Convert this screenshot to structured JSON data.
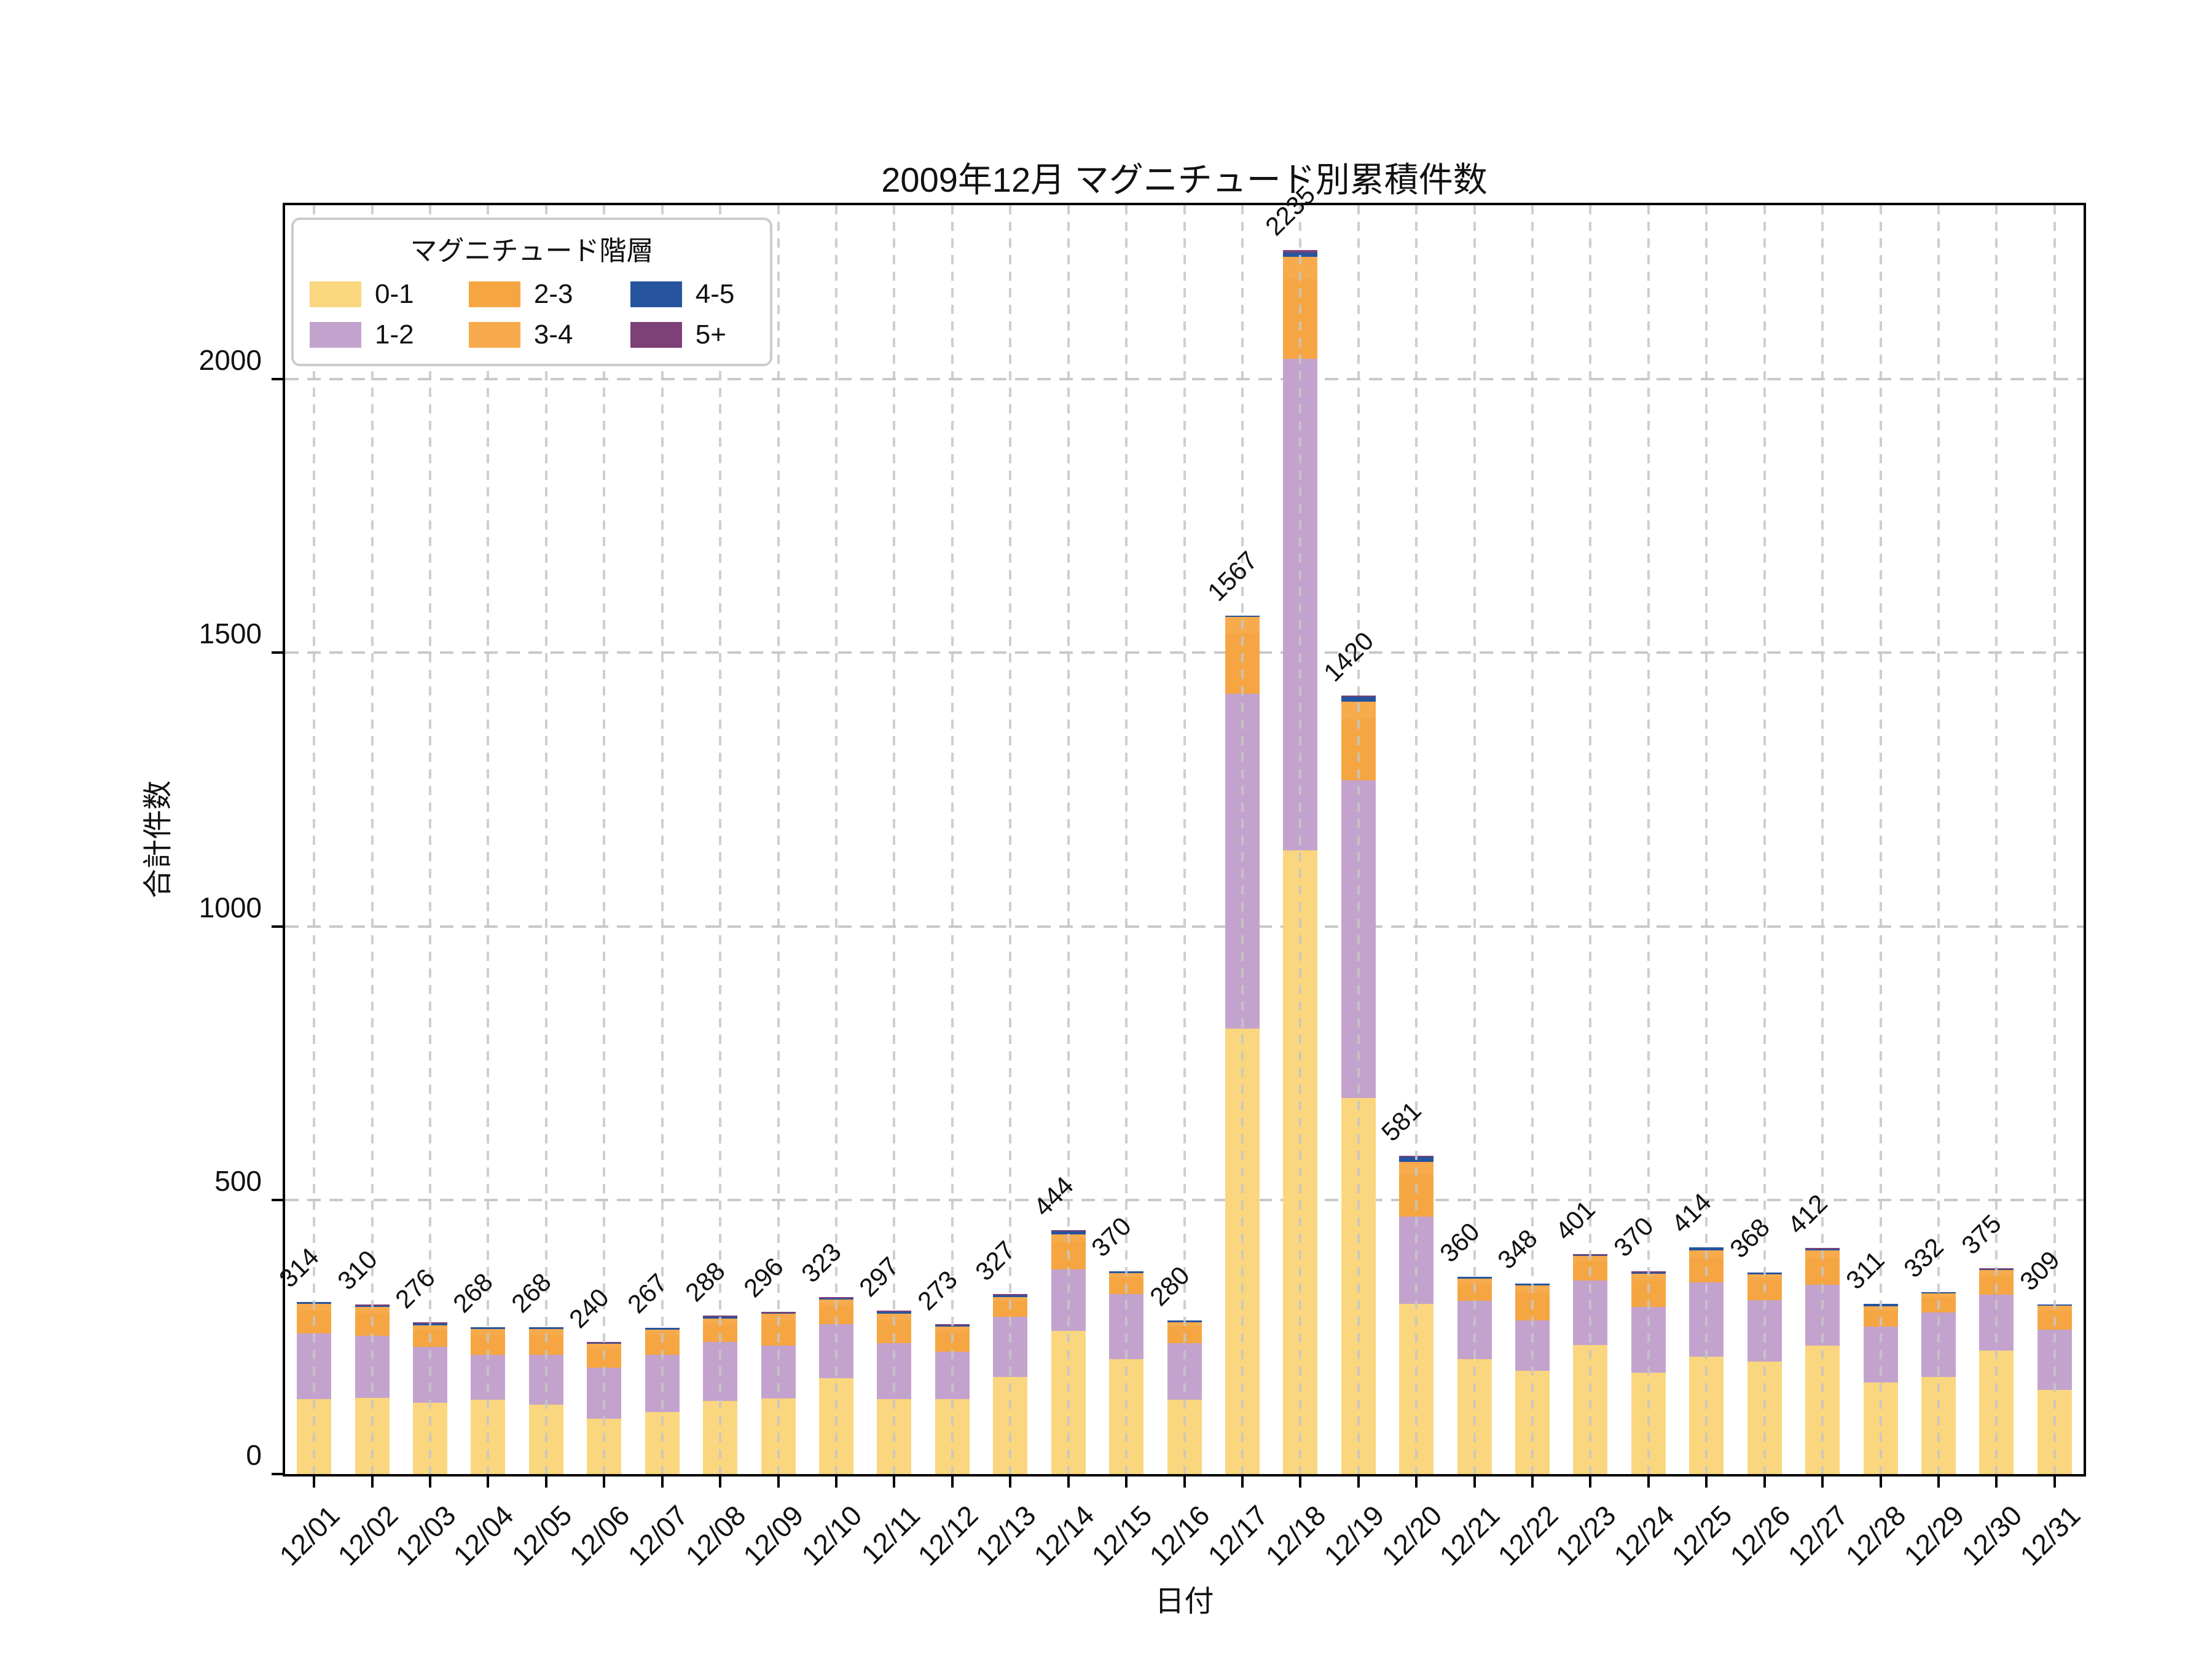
{
  "title": "2009年12月 マグニチュード別累積件数",
  "axes": {
    "x_label": "日付",
    "y_label": "合計件数",
    "y_ticks": [
      0,
      500,
      1000,
      1500,
      2000
    ]
  },
  "legend": {
    "title": "マグニチュード階層",
    "entries": [
      {
        "label": "0-1",
        "color": "#FAD77E"
      },
      {
        "label": "1-2",
        "color": "#C3A3CD"
      },
      {
        "label": "2-3",
        "color": "#F5A643"
      },
      {
        "label": "3-4",
        "color": "#F7AB4C"
      },
      {
        "label": "4-5",
        "color": "#27549E"
      },
      {
        "label": "5+",
        "color": "#7D4077"
      }
    ]
  },
  "colors": {
    "grid": "#c9c9c9",
    "axis": "#000000",
    "text": "#111111",
    "background": "#ffffff"
  },
  "chart_data": {
    "type": "bar",
    "stacked": true,
    "title": "2009年12月 マグニチュード別累積件数",
    "xlabel": "日付",
    "ylabel": "合計件数",
    "ylim": [
      0,
      2317
    ],
    "grid": "dashed",
    "legend_position": "upper left",
    "categories": [
      "12/01",
      "12/02",
      "12/03",
      "12/04",
      "12/05",
      "12/06",
      "12/07",
      "12/08",
      "12/09",
      "12/10",
      "12/11",
      "12/12",
      "12/13",
      "12/14",
      "12/15",
      "12/16",
      "12/17",
      "12/18",
      "12/19",
      "12/20",
      "12/21",
      "12/22",
      "12/23",
      "12/24",
      "12/25",
      "12/26",
      "12/27",
      "12/28",
      "12/29",
      "12/30",
      "12/31"
    ],
    "series": [
      {
        "name": "0-1",
        "color": "#FAD77E",
        "values": [
          137,
          139,
          130,
          136,
          127,
          101,
          113,
          134,
          138,
          175,
          137,
          137,
          177,
          262,
          210,
          136,
          814,
          1139,
          687,
          311,
          210,
          188,
          236,
          185,
          214,
          205,
          234,
          167,
          177,
          226,
          154
        ]
      },
      {
        "name": "1-2",
        "color": "#C3A3CD",
        "values": [
          120,
          114,
          102,
          82,
          91,
          93,
          105,
          107,
          96,
          99,
          102,
          86,
          110,
          112,
          119,
          103,
          611,
          897,
          580,
          159,
          106,
          93,
          117,
          120,
          136,
          113,
          112,
          102,
          118,
          102,
          110
        ]
      },
      {
        "name": "2-3",
        "color": "#F5A643",
        "values": [
          42,
          40,
          31,
          36,
          36,
          34,
          36,
          33,
          46,
          35,
          42,
          36,
          28,
          50,
          30,
          30,
          110,
          146,
          112,
          78,
          32,
          50,
          35,
          48,
          45,
          37,
          48,
          29,
          27,
          34,
          34
        ]
      },
      {
        "name": "3-4",
        "color": "#F7AB4C",
        "values": [
          12,
          12,
          9,
          11,
          11,
          10,
          10,
          10,
          13,
          10,
          12,
          10,
          8,
          14,
          8,
          8,
          30,
          41,
          31,
          22,
          9,
          14,
          10,
          13,
          13,
          10,
          14,
          8,
          8,
          10,
          10
        ]
      },
      {
        "name": "4-5",
        "color": "#27549E",
        "values": [
          3,
          3,
          3,
          3,
          3,
          1,
          3,
          3,
          1,
          2,
          3,
          3,
          3,
          5,
          3,
          3,
          2,
          8,
          9,
          9,
          3,
          3,
          2,
          2,
          6,
          3,
          3,
          5,
          2,
          2,
          1
        ]
      },
      {
        "name": "5+",
        "color": "#7D4077",
        "values": [
          0,
          2,
          1,
          0,
          0,
          1,
          0,
          1,
          2,
          2,
          1,
          1,
          1,
          1,
          0,
          0,
          0,
          4,
          1,
          2,
          0,
          0,
          1,
          2,
          0,
          0,
          1,
          0,
          0,
          1,
          0
        ]
      }
    ],
    "totals": [
      314,
      310,
      276,
      268,
      268,
      240,
      267,
      288,
      296,
      323,
      297,
      273,
      327,
      444,
      370,
      280,
      1567,
      2235,
      1420,
      581,
      360,
      348,
      401,
      370,
      414,
      368,
      412,
      311,
      332,
      375,
      309
    ]
  }
}
